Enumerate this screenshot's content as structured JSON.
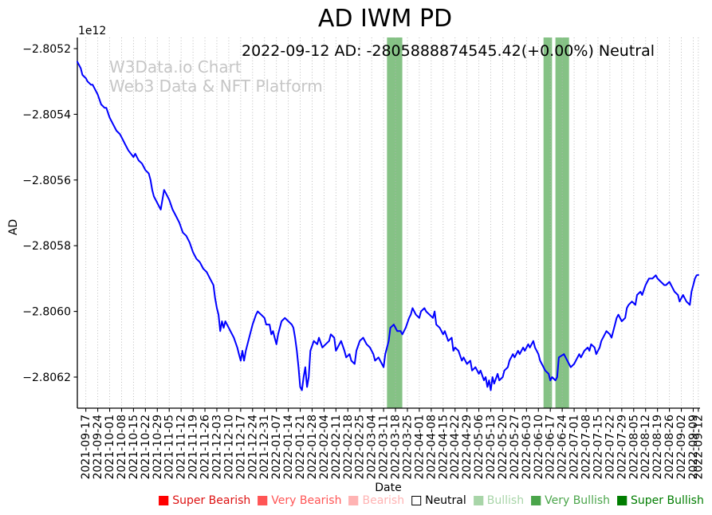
{
  "title": "AD IWM PD",
  "subtitle": "2022-09-12 AD: -2805888874545.42(+0.00%) Neutral",
  "watermark": {
    "line1": "W3Data.io Chart",
    "line2": "Web3 Data & NFT Platform"
  },
  "legend": {
    "items": [
      {
        "label": "Super Bearish",
        "patch_color": "#ff0000",
        "text_color": "#dd1111",
        "edge_color": "#ff0000"
      },
      {
        "label": "Very Bearish",
        "patch_color": "#ff5555",
        "text_color": "#ff5555",
        "edge_color": "#ff5555"
      },
      {
        "label": "Bearish",
        "patch_color": "#ffb3b3",
        "text_color": "#ffb3b3",
        "edge_color": "#ffb3b3"
      },
      {
        "label": "Neutral",
        "patch_color": "#ffffff",
        "text_color": "#000000",
        "edge_color": "#000000"
      },
      {
        "label": "Bullish",
        "patch_color": "#a8d5a8",
        "text_color": "#a8d5a8",
        "edge_color": "#a8d5a8"
      },
      {
        "label": "Very Bullish",
        "patch_color": "#4aa54a",
        "text_color": "#4aa54a",
        "edge_color": "#4aa54a"
      },
      {
        "label": "Super Bullish",
        "patch_color": "#007d00",
        "text_color": "#007d00",
        "edge_color": "#007d00"
      }
    ]
  },
  "chart_data": {
    "type": "line",
    "title": "AD IWM PD",
    "xlabel": "Date",
    "ylabel": "AD",
    "offset_text": "1e12",
    "grid": "vertical-dotted",
    "legend_position": "bottom-center",
    "xlim": [
      "2021-09-12",
      "2022-09-13"
    ],
    "ylim_1e12": [
      -2.8063,
      -2.80517
    ],
    "y_tick_values": [
      -2.8052,
      -2.8054,
      -2.8056,
      -2.8058,
      -2.806,
      -2.8062
    ],
    "y_tick_labels": [
      "−2.8052",
      "−2.8054",
      "−2.8056",
      "−2.8058",
      "−2.8060",
      "−2.8062"
    ],
    "x_tick_labels": [
      "2021-09-17",
      "2021-09-24",
      "2021-10-01",
      "2021-10-08",
      "2021-10-15",
      "2021-10-22",
      "2021-10-29",
      "2021-11-05",
      "2021-11-12",
      "2021-11-19",
      "2021-11-26",
      "2021-12-03",
      "2021-12-10",
      "2021-12-17",
      "2021-12-24",
      "2021-12-31",
      "2022-01-07",
      "2022-01-14",
      "2022-01-21",
      "2022-01-28",
      "2022-02-04",
      "2022-02-11",
      "2022-02-18",
      "2022-02-25",
      "2022-03-04",
      "2022-03-11",
      "2022-03-18",
      "2022-03-25",
      "2022-04-01",
      "2022-04-08",
      "2022-04-15",
      "2022-04-22",
      "2022-04-29",
      "2022-05-06",
      "2022-05-13",
      "2022-05-20",
      "2022-05-27",
      "2022-06-03",
      "2022-06-10",
      "2022-06-17",
      "2022-06-24",
      "2022-07-01",
      "2022-07-08",
      "2022-07-15",
      "2022-07-22",
      "2022-07-29",
      "2022-08-05",
      "2022-08-12",
      "2022-08-19",
      "2022-08-26",
      "2022-09-02",
      "2022-09-09",
      "2022-09-12"
    ],
    "signal_bands": [
      {
        "label": "Very Bullish",
        "start_date": "2022-03-13",
        "end_date": "2022-03-22",
        "color": "#85c285"
      },
      {
        "label": "Very Bullish",
        "start_date": "2022-06-13",
        "end_date": "2022-06-18",
        "color": "#85c285"
      },
      {
        "label": "Very Bullish",
        "start_date": "2022-06-20",
        "end_date": "2022-06-28",
        "color": "#85c285"
      }
    ],
    "series": [
      {
        "name": "AD",
        "color": "#0000ff",
        "start_date": "2021-09-12",
        "units": "1e12",
        "points": [
          [
            0,
            -2.80524
          ],
          [
            2,
            -2.80526
          ],
          [
            3,
            -2.80528
          ],
          [
            5,
            -2.80529
          ],
          [
            6,
            -2.8053
          ],
          [
            8,
            -2.80531
          ],
          [
            9,
            -2.80531
          ],
          [
            11,
            -2.80533
          ],
          [
            12,
            -2.80534
          ],
          [
            14,
            -2.80537
          ],
          [
            16,
            -2.80538
          ],
          [
            17,
            -2.80538
          ],
          [
            19,
            -2.80541
          ],
          [
            21,
            -2.80543
          ],
          [
            23,
            -2.80545
          ],
          [
            25,
            -2.80546
          ],
          [
            26,
            -2.80547
          ],
          [
            28,
            -2.80549
          ],
          [
            30,
            -2.80551
          ],
          [
            33,
            -2.80553
          ],
          [
            34,
            -2.80552
          ],
          [
            36,
            -2.80554
          ],
          [
            38,
            -2.80555
          ],
          [
            40,
            -2.80557
          ],
          [
            42,
            -2.80558
          ],
          [
            43,
            -2.8056
          ],
          [
            44,
            -2.80563
          ],
          [
            45,
            -2.80565
          ],
          [
            47,
            -2.80567
          ],
          [
            49,
            -2.80569
          ],
          [
            50,
            -2.80566
          ],
          [
            51,
            -2.80563
          ],
          [
            52,
            -2.80564
          ],
          [
            54,
            -2.80566
          ],
          [
            56,
            -2.80569
          ],
          [
            58,
            -2.80571
          ],
          [
            60,
            -2.80573
          ],
          [
            62,
            -2.80576
          ],
          [
            64,
            -2.80577
          ],
          [
            66,
            -2.80579
          ],
          [
            68,
            -2.80582
          ],
          [
            70,
            -2.80584
          ],
          [
            72,
            -2.80585
          ],
          [
            74,
            -2.80587
          ],
          [
            76,
            -2.80588
          ],
          [
            78,
            -2.8059
          ],
          [
            80,
            -2.80592
          ],
          [
            81,
            -2.80596
          ],
          [
            82,
            -2.80599
          ],
          [
            83,
            -2.80601
          ],
          [
            84,
            -2.80606
          ],
          [
            85,
            -2.80603
          ],
          [
            86,
            -2.80605
          ],
          [
            87,
            -2.80603
          ],
          [
            89,
            -2.80605
          ],
          [
            90,
            -2.80606
          ],
          [
            92,
            -2.80608
          ],
          [
            94,
            -2.80611
          ],
          [
            95,
            -2.80613
          ],
          [
            96,
            -2.80615
          ],
          [
            97,
            -2.80612
          ],
          [
            98,
            -2.80615
          ],
          [
            99,
            -2.80612
          ],
          [
            101,
            -2.80608
          ],
          [
            103,
            -2.80604
          ],
          [
            105,
            -2.80601
          ],
          [
            106,
            -2.806
          ],
          [
            108,
            -2.80601
          ],
          [
            110,
            -2.80602
          ],
          [
            111,
            -2.80604
          ],
          [
            113,
            -2.80604
          ],
          [
            114,
            -2.80607
          ],
          [
            115,
            -2.80606
          ],
          [
            116,
            -2.80608
          ],
          [
            117,
            -2.8061
          ],
          [
            118,
            -2.80607
          ],
          [
            120,
            -2.80603
          ],
          [
            122,
            -2.80602
          ],
          [
            124,
            -2.80603
          ],
          [
            126,
            -2.80604
          ],
          [
            127,
            -2.80605
          ],
          [
            128,
            -2.80608
          ],
          [
            129,
            -2.80612
          ],
          [
            130,
            -2.80617
          ],
          [
            131,
            -2.80623
          ],
          [
            132,
            -2.80624
          ],
          [
            133,
            -2.8062
          ],
          [
            134,
            -2.80617
          ],
          [
            135,
            -2.80623
          ],
          [
            136,
            -2.8062
          ],
          [
            137,
            -2.80612
          ],
          [
            139,
            -2.80609
          ],
          [
            141,
            -2.8061
          ],
          [
            142,
            -2.80608
          ],
          [
            144,
            -2.80611
          ],
          [
            146,
            -2.8061
          ],
          [
            148,
            -2.80609
          ],
          [
            149,
            -2.80607
          ],
          [
            151,
            -2.80608
          ],
          [
            152,
            -2.80612
          ],
          [
            153,
            -2.80611
          ],
          [
            155,
            -2.80609
          ],
          [
            157,
            -2.80612
          ],
          [
            158,
            -2.80614
          ],
          [
            160,
            -2.80613
          ],
          [
            161,
            -2.80615
          ],
          [
            163,
            -2.80616
          ],
          [
            164,
            -2.80612
          ],
          [
            166,
            -2.80609
          ],
          [
            168,
            -2.80608
          ],
          [
            170,
            -2.8061
          ],
          [
            172,
            -2.80611
          ],
          [
            174,
            -2.80613
          ],
          [
            175,
            -2.80615
          ],
          [
            177,
            -2.80614
          ],
          [
            179,
            -2.80616
          ],
          [
            180,
            -2.80617
          ],
          [
            181,
            -2.80613
          ],
          [
            183,
            -2.80609
          ],
          [
            184,
            -2.80605
          ],
          [
            186,
            -2.80604
          ],
          [
            188,
            -2.80606
          ],
          [
            190,
            -2.80606
          ],
          [
            191,
            -2.80607
          ],
          [
            193,
            -2.80605
          ],
          [
            195,
            -2.80602
          ],
          [
            196,
            -2.80601
          ],
          [
            197,
            -2.80599
          ],
          [
            199,
            -2.80601
          ],
          [
            201,
            -2.80602
          ],
          [
            202,
            -2.806
          ],
          [
            204,
            -2.80599
          ],
          [
            205,
            -2.806
          ],
          [
            207,
            -2.80601
          ],
          [
            209,
            -2.80602
          ],
          [
            210,
            -2.806
          ],
          [
            211,
            -2.80604
          ],
          [
            213,
            -2.80605
          ],
          [
            215,
            -2.80607
          ],
          [
            216,
            -2.80606
          ],
          [
            218,
            -2.80609
          ],
          [
            220,
            -2.80608
          ],
          [
            221,
            -2.80612
          ],
          [
            222,
            -2.80611
          ],
          [
            224,
            -2.80612
          ],
          [
            226,
            -2.80615
          ],
          [
            227,
            -2.80614
          ],
          [
            229,
            -2.80616
          ],
          [
            231,
            -2.80615
          ],
          [
            232,
            -2.80618
          ],
          [
            234,
            -2.80617
          ],
          [
            236,
            -2.80619
          ],
          [
            237,
            -2.80618
          ],
          [
            239,
            -2.80621
          ],
          [
            240,
            -2.8062
          ],
          [
            241,
            -2.80623
          ],
          [
            242,
            -2.80621
          ],
          [
            243,
            -2.80624
          ],
          [
            244,
            -2.8062
          ],
          [
            245,
            -2.80622
          ],
          [
            247,
            -2.80619
          ],
          [
            248,
            -2.80621
          ],
          [
            250,
            -2.8062
          ],
          [
            251,
            -2.80618
          ],
          [
            253,
            -2.80617
          ],
          [
            254,
            -2.80615
          ],
          [
            256,
            -2.80613
          ],
          [
            257,
            -2.80614
          ],
          [
            259,
            -2.80612
          ],
          [
            260,
            -2.80613
          ],
          [
            262,
            -2.80611
          ],
          [
            263,
            -2.80612
          ],
          [
            265,
            -2.8061
          ],
          [
            266,
            -2.80611
          ],
          [
            268,
            -2.80609
          ],
          [
            269,
            -2.80611
          ],
          [
            271,
            -2.80613
          ],
          [
            272,
            -2.80615
          ],
          [
            274,
            -2.80617
          ],
          [
            275,
            -2.80618
          ],
          [
            277,
            -2.80619
          ],
          [
            278,
            -2.80621
          ],
          [
            279,
            -2.8062
          ],
          [
            281,
            -2.80621
          ],
          [
            282,
            -2.8062
          ],
          [
            283,
            -2.80614
          ],
          [
            286,
            -2.80613
          ],
          [
            287,
            -2.80614
          ],
          [
            289,
            -2.80616
          ],
          [
            290,
            -2.80617
          ],
          [
            292,
            -2.80616
          ],
          [
            293,
            -2.80615
          ],
          [
            295,
            -2.80613
          ],
          [
            296,
            -2.80614
          ],
          [
            298,
            -2.80612
          ],
          [
            300,
            -2.80611
          ],
          [
            301,
            -2.80612
          ],
          [
            302,
            -2.8061
          ],
          [
            304,
            -2.80611
          ],
          [
            305,
            -2.80613
          ],
          [
            307,
            -2.80611
          ],
          [
            308,
            -2.80609
          ],
          [
            310,
            -2.80607
          ],
          [
            311,
            -2.80606
          ],
          [
            313,
            -2.80607
          ],
          [
            314,
            -2.80608
          ],
          [
            316,
            -2.80604
          ],
          [
            317,
            -2.80602
          ],
          [
            318,
            -2.80601
          ],
          [
            320,
            -2.80603
          ],
          [
            322,
            -2.80602
          ],
          [
            323,
            -2.80599
          ],
          [
            324,
            -2.80598
          ],
          [
            326,
            -2.80597
          ],
          [
            328,
            -2.80598
          ],
          [
            329,
            -2.80595
          ],
          [
            331,
            -2.80594
          ],
          [
            332,
            -2.80595
          ],
          [
            334,
            -2.80592
          ],
          [
            335,
            -2.80591
          ],
          [
            336,
            -2.8059
          ],
          [
            338,
            -2.8059
          ],
          [
            340,
            -2.80589
          ],
          [
            341,
            -2.8059
          ],
          [
            343,
            -2.80591
          ],
          [
            345,
            -2.80592
          ],
          [
            346,
            -2.80592
          ],
          [
            348,
            -2.80591
          ],
          [
            350,
            -2.80593
          ],
          [
            351,
            -2.80594
          ],
          [
            353,
            -2.80595
          ],
          [
            354,
            -2.80597
          ],
          [
            356,
            -2.80595
          ],
          [
            357,
            -2.80596
          ],
          [
            358,
            -2.80597
          ],
          [
            360,
            -2.80598
          ],
          [
            361,
            -2.80594
          ],
          [
            362,
            -2.80592
          ],
          [
            363,
            -2.8059
          ],
          [
            364,
            -2.80589
          ],
          [
            365,
            -2.805889
          ]
        ]
      }
    ]
  }
}
